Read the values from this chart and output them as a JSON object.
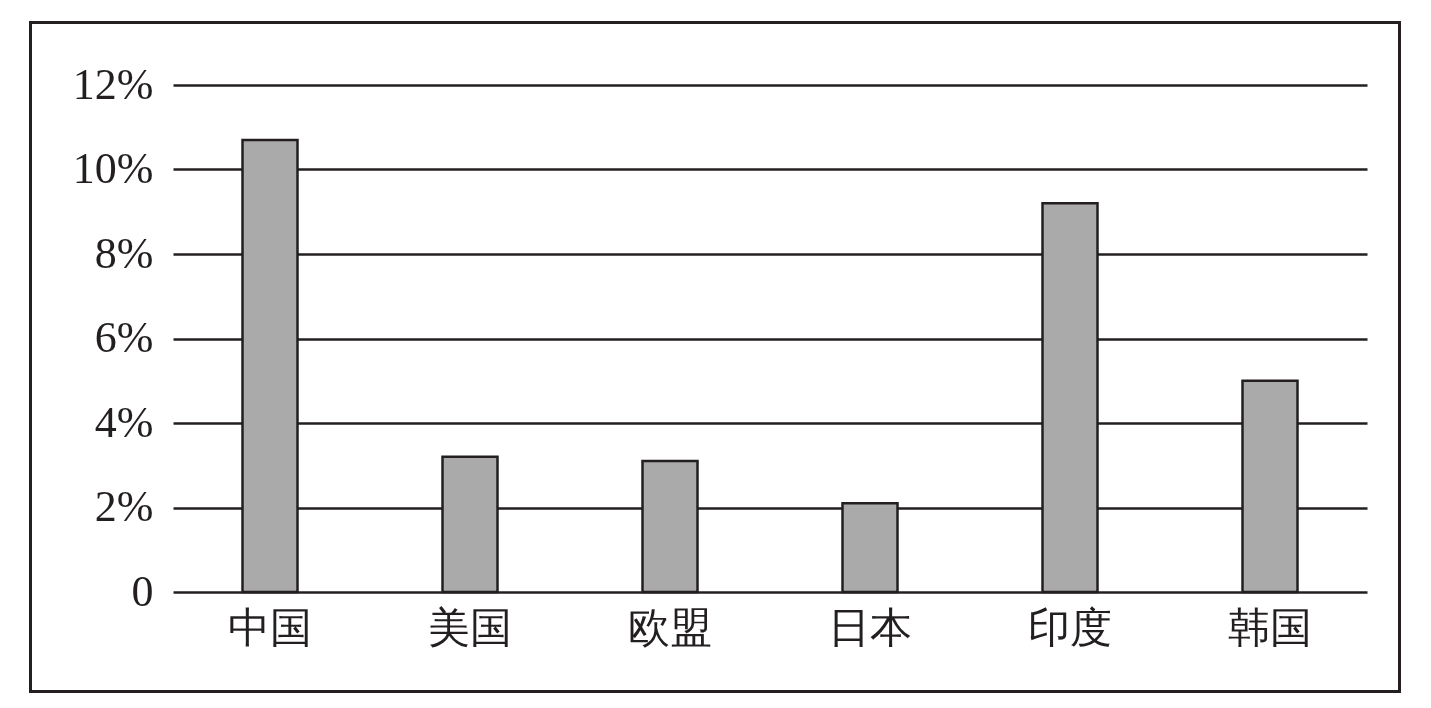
{
  "chart_data": {
    "type": "bar",
    "categories": [
      "中国",
      "美国",
      "欧盟",
      "日本",
      "印度",
      "韩国"
    ],
    "values": [
      10.7,
      3.2,
      3.1,
      2.1,
      9.2,
      5.0
    ],
    "color": "#aaaaaa",
    "ylim": [
      0,
      12
    ],
    "yticks": [
      0,
      {
        "value": 2,
        "label": "2%"
      },
      {
        "value": 4,
        "label": "4%"
      },
      {
        "value": 6,
        "label": "6%"
      },
      {
        "value": 8,
        "label": "8%"
      },
      {
        "value": 10,
        "label": "10%"
      },
      {
        "value": 12,
        "label": "12%"
      }
    ],
    "grid": "y"
  }
}
